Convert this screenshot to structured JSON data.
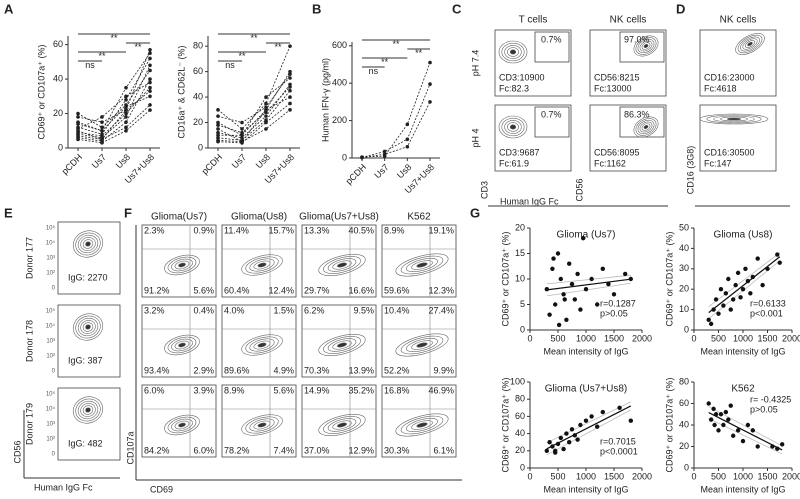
{
  "panel_labels": [
    "A",
    "B",
    "C",
    "D",
    "E",
    "F",
    "G"
  ],
  "chart_data": [
    {
      "type": "line",
      "ylabel": "CD69⁺ or CD107a⁺ (%)",
      "categories": [
        "pCDH",
        "Us7",
        "Us8",
        "Us7+Us8"
      ],
      "ylim": [
        0,
        65
      ],
      "yticks": [
        0,
        20,
        40,
        60
      ],
      "color": "#222",
      "annotations": [
        "**",
        "**",
        "**",
        "ns"
      ],
      "series": [
        {
          "values": [
            10,
            5,
            22,
            57
          ]
        },
        {
          "values": [
            12,
            8,
            28,
            52
          ]
        },
        {
          "values": [
            8,
            6,
            18,
            48
          ]
        },
        {
          "values": [
            15,
            10,
            35,
            55
          ]
        },
        {
          "values": [
            20,
            12,
            25,
            45
          ]
        },
        {
          "values": [
            6,
            4,
            15,
            40
          ]
        },
        {
          "values": [
            9,
            7,
            20,
            35
          ]
        },
        {
          "values": [
            11,
            18,
            30,
            38
          ]
        },
        {
          "values": [
            7,
            5,
            12,
            25
          ]
        },
        {
          "values": [
            5,
            3,
            10,
            22
          ]
        },
        {
          "values": [
            14,
            10,
            24,
            30
          ]
        },
        {
          "values": [
            18,
            15,
            22,
            33
          ]
        }
      ]
    },
    {
      "type": "line",
      "ylabel": "CD16a⁺ & CD62L⁻ (%)",
      "categories": [
        "pCDH",
        "Us7",
        "Us8",
        "Us7+Us8"
      ],
      "ylim": [
        0,
        88
      ],
      "yticks": [
        0,
        20,
        40,
        60,
        80
      ],
      "color": "#222",
      "annotations": [
        "**",
        "**",
        "**",
        "ns"
      ],
      "series": [
        {
          "values": [
            15,
            5,
            30,
            60
          ]
        },
        {
          "values": [
            20,
            10,
            40,
            55
          ]
        },
        {
          "values": [
            12,
            8,
            25,
            50
          ]
        },
        {
          "values": [
            30,
            15,
            35,
            80
          ]
        },
        {
          "values": [
            8,
            6,
            22,
            45
          ]
        },
        {
          "values": [
            10,
            10,
            30,
            40
          ]
        },
        {
          "values": [
            5,
            4,
            20,
            35
          ]
        },
        {
          "values": [
            25,
            20,
            32,
            58
          ]
        },
        {
          "values": [
            18,
            12,
            28,
            48
          ]
        },
        {
          "values": [
            6,
            5,
            15,
            30
          ]
        }
      ]
    },
    {
      "type": "line",
      "ylabel": "Human IFN-γ (pg/ml)",
      "categories": [
        "pCDH",
        "Us7",
        "Us8",
        "Us7+Us8"
      ],
      "ylim": [
        0,
        620
      ],
      "yticks": [
        0,
        200,
        400,
        600
      ],
      "color": "#222",
      "annotations": [
        "**",
        "**",
        "**",
        "ns"
      ],
      "series": [
        {
          "values": [
            5,
            10,
            180,
            510
          ]
        },
        {
          "values": [
            3,
            35,
            100,
            395
          ]
        },
        {
          "values": [
            2,
            20,
            60,
            300
          ]
        }
      ]
    },
    {
      "type": "scatter",
      "title": "Glioma (Us7)",
      "xlabel": "Mean intensity of IgG",
      "ylabel": "CD69⁺ or CD107a⁺ (%)",
      "xlim": [
        0,
        2000
      ],
      "xticks": [
        0,
        500,
        1000,
        1500,
        2000
      ],
      "ylim": [
        0,
        20
      ],
      "yticks": [
        0,
        5,
        10,
        15,
        20
      ],
      "annotations": [
        "r=0.1287",
        "p>0.05"
      ],
      "color": "#111",
      "x": [
        300,
        350,
        400,
        450,
        500,
        550,
        600,
        650,
        700,
        750,
        800,
        850,
        900,
        950,
        1000,
        1100,
        1200,
        1300,
        1400,
        1500,
        1700,
        1800,
        420,
        520,
        620
      ],
      "values": [
        8,
        3,
        12,
        5,
        15,
        10,
        7,
        2,
        13,
        9,
        6,
        11,
        4,
        18,
        8,
        10,
        5,
        12,
        9,
        7,
        11,
        10,
        14,
        1,
        6
      ]
    },
    {
      "type": "scatter",
      "title": "Glioma (Us8)",
      "xlabel": "Mean intensity of IgG",
      "ylabel": "CD69⁺ or CD107a⁺ (%)",
      "xlim": [
        0,
        2000
      ],
      "xticks": [
        0,
        500,
        1000,
        1500,
        2000
      ],
      "ylim": [
        0,
        50
      ],
      "yticks": [
        0,
        10,
        20,
        30,
        40,
        50
      ],
      "annotations": [
        "r=0.6133",
        "p<0.001"
      ],
      "color": "#111",
      "x": [
        300,
        400,
        450,
        500,
        550,
        600,
        650,
        700,
        800,
        850,
        900,
        1000,
        1050,
        1100,
        1150,
        1200,
        1300,
        1400,
        1500,
        1700,
        1750,
        350,
        750,
        950
      ],
      "values": [
        5,
        10,
        15,
        8,
        20,
        12,
        18,
        25,
        15,
        22,
        28,
        20,
        30,
        24,
        18,
        26,
        35,
        22,
        30,
        37,
        33,
        3,
        10,
        16
      ]
    },
    {
      "type": "scatter",
      "title": "Glioma (Us7+Us8)",
      "xlabel": "Mean intensity of IgG",
      "ylabel": "CD69⁺ or CD107a⁺ (%)",
      "xlim": [
        0,
        2000
      ],
      "xticks": [
        0,
        500,
        1000,
        1500,
        2000
      ],
      "ylim": [
        0,
        100
      ],
      "yticks": [
        0,
        20,
        40,
        60,
        80,
        100
      ],
      "annotations": [
        "r=0.7015",
        "p<0.0001"
      ],
      "color": "#111",
      "x": [
        300,
        350,
        400,
        450,
        500,
        550,
        600,
        650,
        700,
        750,
        800,
        900,
        1000,
        1100,
        1200,
        1300,
        1600,
        1800,
        450,
        850
      ],
      "values": [
        20,
        30,
        25,
        20,
        28,
        35,
        22,
        40,
        30,
        45,
        38,
        50,
        55,
        60,
        48,
        65,
        70,
        55,
        18,
        33
      ]
    },
    {
      "type": "scatter",
      "title": "K562",
      "xlabel": "Mean intensity of IgG",
      "ylabel": "CD69⁺ or CD107a⁺ (%)",
      "xlim": [
        0,
        2000
      ],
      "xticks": [
        0,
        500,
        1000,
        1500,
        2000
      ],
      "ylim": [
        0,
        80
      ],
      "yticks": [
        0,
        20,
        40,
        60,
        80
      ],
      "annotations": [
        "r= -0.4325",
        "p>0.05"
      ],
      "color": "#111",
      "x": [
        300,
        350,
        400,
        450,
        500,
        550,
        600,
        700,
        750,
        800,
        900,
        1000,
        1100,
        1200,
        1300,
        1600,
        1700,
        1800,
        420,
        650
      ],
      "values": [
        60,
        45,
        55,
        50,
        35,
        50,
        40,
        45,
        58,
        30,
        35,
        25,
        40,
        35,
        20,
        20,
        18,
        22,
        40,
        52
      ]
    }
  ],
  "flow": {
    "C": {
      "columns": [
        "T cells",
        "NK cells"
      ],
      "rows": [
        "pH 7.4",
        "pH 4"
      ],
      "x_label": "Human IgG Fc",
      "y_labels": [
        "CD3",
        "CD56"
      ],
      "plots": [
        [
          {
            "gate": "0.7%",
            "lines": [
              "CD3:10900",
              "Fc:82.3"
            ]
          },
          {
            "gate": "97.0%",
            "lines": [
              "CD56:8215",
              "Fc:13000"
            ]
          }
        ],
        [
          {
            "gate": "0.7%",
            "lines": [
              "CD3:9687",
              "Fc:61.9"
            ]
          },
          {
            "gate": "86.3%",
            "lines": [
              "CD56:8095",
              "Fc:1162"
            ]
          }
        ]
      ]
    },
    "D": {
      "title": "NK cells",
      "y_label": "CD16 (3G8)",
      "plots": [
        {
          "lines": [
            "CD16:23000",
            "Fc:4618"
          ]
        },
        {
          "lines": [
            "CD16:30500",
            "Fc:147"
          ]
        }
      ]
    },
    "E": {
      "donors": [
        "Donor 177",
        "Donor 178",
        "Donor 179"
      ],
      "plots": [
        "IgG: 2270",
        "IgG: 387",
        "IgG: 482"
      ],
      "y_label": "CD56",
      "x_label": "Human IgG Fc",
      "log_ticks": [
        "10⁵",
        "10⁴",
        "10³",
        "10²",
        "0"
      ]
    },
    "F": {
      "columns": [
        "Glioma(Us7)",
        "Glioma(Us8)",
        "Glioma(Us7+Us8)",
        "K562"
      ],
      "y_label": "CD107a",
      "x_label": "CD69",
      "quadrants": [
        [
          [
            "2.3%",
            "0.9%",
            "91.2%",
            "5.6%"
          ],
          [
            "11.4%",
            "15.7%",
            "60.4%",
            "12.4%"
          ],
          [
            "13.3%",
            "40.5%",
            "29.7%",
            "16.6%"
          ],
          [
            "8.9%",
            "19.1%",
            "59.6%",
            "12.3%"
          ]
        ],
        [
          [
            "3.2%",
            "0.4%",
            "93.4%",
            "2.9%"
          ],
          [
            "4.0%",
            "1.5%",
            "89.6%",
            "4.9%"
          ],
          [
            "6.2%",
            "9.5%",
            "70.3%",
            "13.9%"
          ],
          [
            "10.4%",
            "27.4%",
            "52.2%",
            "9.9%"
          ]
        ],
        [
          [
            "6.0%",
            "3.9%",
            "84.2%",
            "6.0%"
          ],
          [
            "8.9%",
            "5.6%",
            "78.2%",
            "7.4%"
          ],
          [
            "14.9%",
            "35.2%",
            "37.0%",
            "12.9%"
          ],
          [
            "16.8%",
            "46.9%",
            "30.3%",
            "6.1%"
          ]
        ]
      ]
    }
  }
}
